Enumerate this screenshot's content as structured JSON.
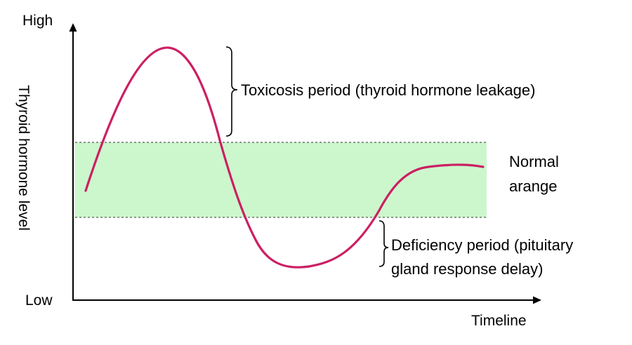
{
  "diagram": {
    "y_axis": {
      "title": "Thyroid hormone level",
      "high_label": "High",
      "low_label": "Low"
    },
    "x_axis": {
      "title": "Timeline"
    },
    "normal_band": {
      "label_line1": "Normal",
      "label_line2": "arange",
      "color": "#ccf7cc"
    },
    "toxicosis": {
      "label": "Toxicosis period (thyroid hormone leakage)"
    },
    "deficiency": {
      "label_line1": "Deficiency period (pituitary",
      "label_line2": "gland response delay)"
    },
    "curve": {
      "color": "#cc1f63"
    }
  }
}
